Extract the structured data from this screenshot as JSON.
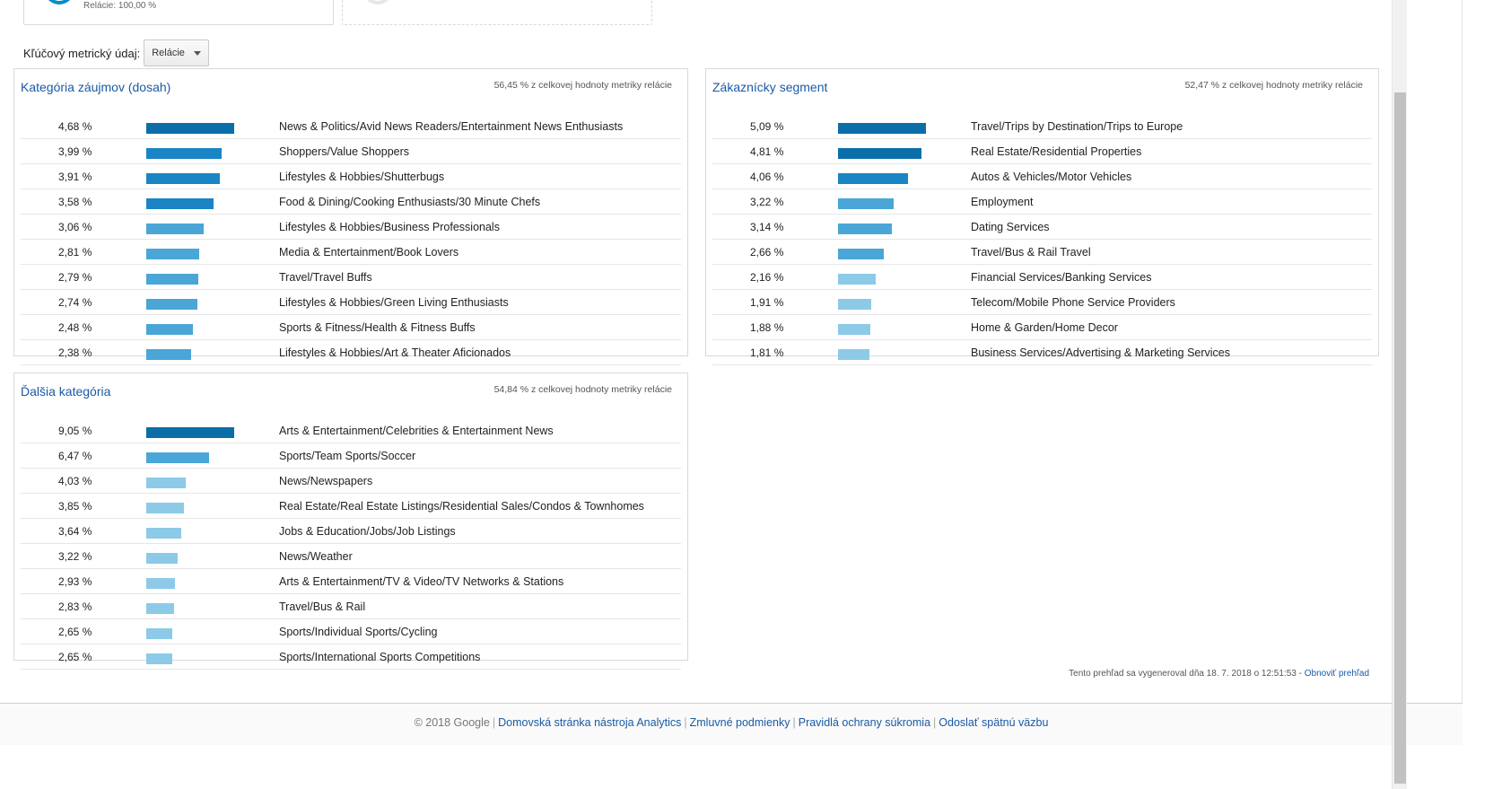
{
  "top_cards": {
    "card1_label": "Relácie: 100,00 %"
  },
  "key_metric": {
    "label": "Kľúčový metrický údaj:",
    "selected": "Relácie"
  },
  "panels": [
    {
      "title": "Kategória záujmov (dosah)",
      "total": "56,45 % z celkovej hodnoty metriky relácie",
      "rows": [
        {
          "pct": "4,68 %",
          "value": 4.68,
          "category": "News & Politics/Avid News Readers/Entertainment News Enthusiasts"
        },
        {
          "pct": "3,99 %",
          "value": 3.99,
          "category": "Shoppers/Value Shoppers"
        },
        {
          "pct": "3,91 %",
          "value": 3.91,
          "category": "Lifestyles & Hobbies/Shutterbugs"
        },
        {
          "pct": "3,58 %",
          "value": 3.58,
          "category": "Food & Dining/Cooking Enthusiasts/30 Minute Chefs"
        },
        {
          "pct": "3,06 %",
          "value": 3.06,
          "category": "Lifestyles & Hobbies/Business Professionals"
        },
        {
          "pct": "2,81 %",
          "value": 2.81,
          "category": "Media & Entertainment/Book Lovers"
        },
        {
          "pct": "2,79 %",
          "value": 2.79,
          "category": "Travel/Travel Buffs"
        },
        {
          "pct": "2,74 %",
          "value": 2.74,
          "category": "Lifestyles & Hobbies/Green Living Enthusiasts"
        },
        {
          "pct": "2,48 %",
          "value": 2.48,
          "category": "Sports & Fitness/Health & Fitness Buffs"
        },
        {
          "pct": "2,38 %",
          "value": 2.38,
          "category": "Lifestyles & Hobbies/Art & Theater Aficionados"
        }
      ]
    },
    {
      "title": "Zákaznícky segment",
      "total": "52,47 % z celkovej hodnoty metriky relácie",
      "rows": [
        {
          "pct": "5,09 %",
          "value": 5.09,
          "category": "Travel/Trips by Destination/Trips to Europe"
        },
        {
          "pct": "4,81 %",
          "value": 4.81,
          "category": "Real Estate/Residential Properties"
        },
        {
          "pct": "4,06 %",
          "value": 4.06,
          "category": "Autos & Vehicles/Motor Vehicles"
        },
        {
          "pct": "3,22 %",
          "value": 3.22,
          "category": "Employment"
        },
        {
          "pct": "3,14 %",
          "value": 3.14,
          "category": "Dating Services"
        },
        {
          "pct": "2,66 %",
          "value": 2.66,
          "category": "Travel/Bus & Rail Travel"
        },
        {
          "pct": "2,16 %",
          "value": 2.16,
          "category": "Financial Services/Banking Services"
        },
        {
          "pct": "1,91 %",
          "value": 1.91,
          "category": "Telecom/Mobile Phone Service Providers"
        },
        {
          "pct": "1,88 %",
          "value": 1.88,
          "category": "Home & Garden/Home Decor"
        },
        {
          "pct": "1,81 %",
          "value": 1.81,
          "category": "Business Services/Advertising & Marketing Services"
        }
      ]
    },
    {
      "title": "Ďalšia kategória",
      "total": "54,84 % z celkovej hodnoty metriky relácie",
      "rows": [
        {
          "pct": "9,05 %",
          "value": 9.05,
          "category": "Arts & Entertainment/Celebrities & Entertainment News"
        },
        {
          "pct": "6,47 %",
          "value": 6.47,
          "category": "Sports/Team Sports/Soccer"
        },
        {
          "pct": "4,03 %",
          "value": 4.03,
          "category": "News/Newspapers"
        },
        {
          "pct": "3,85 %",
          "value": 3.85,
          "category": "Real Estate/Real Estate Listings/Residential Sales/Condos & Townhomes"
        },
        {
          "pct": "3,64 %",
          "value": 3.64,
          "category": "Jobs & Education/Jobs/Job Listings"
        },
        {
          "pct": "3,22 %",
          "value": 3.22,
          "category": "News/Weather"
        },
        {
          "pct": "2,93 %",
          "value": 2.93,
          "category": "Arts & Entertainment/TV & Video/TV Networks & Stations"
        },
        {
          "pct": "2,83 %",
          "value": 2.83,
          "category": "Travel/Bus & Rail"
        },
        {
          "pct": "2,65 %",
          "value": 2.65,
          "category": "Sports/Individual Sports/Cycling"
        },
        {
          "pct": "2,65 %",
          "value": 2.65,
          "category": "Sports/International Sports Competitions"
        }
      ]
    }
  ],
  "bar_colors": [
    "#0b6ea8",
    "#1a84c4",
    "#4aa6d6",
    "#8ccae8"
  ],
  "report_note": {
    "text": "Tento prehľad sa vygeneroval dňa 18. 7. 2018 o 12:51:53 - ",
    "link": "Obnoviť prehľad"
  },
  "footer": {
    "copyright": "© 2018 Google",
    "links": [
      "Domovská stránka nástroja Analytics",
      "Zmluvné podmienky",
      "Pravidlá ochrany súkromia",
      "Odoslať spätnú väzbu"
    ]
  }
}
